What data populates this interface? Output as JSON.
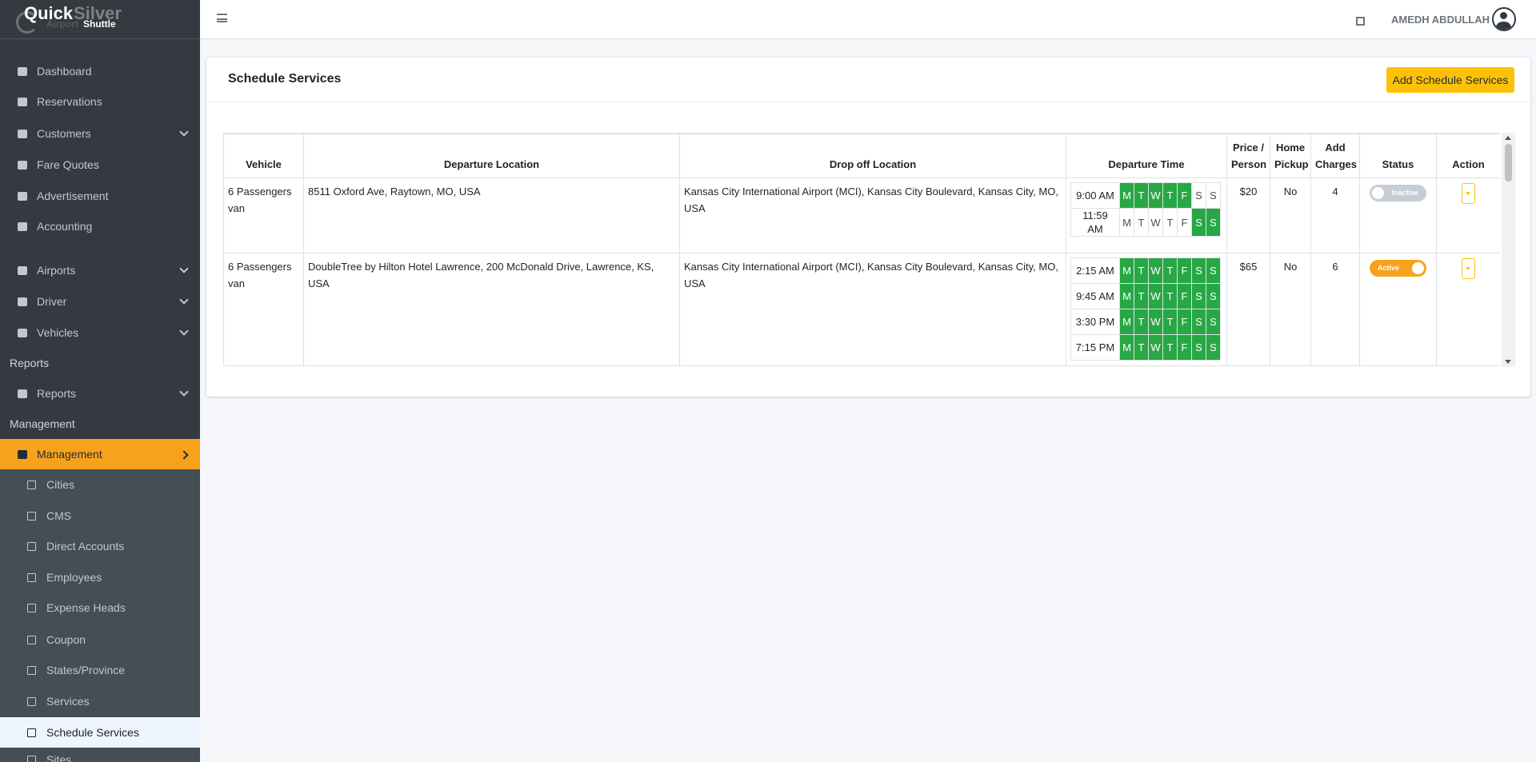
{
  "brand": {
    "word1": "Quick",
    "word2": "Silver",
    "word3": "Airport",
    "word4": "Shuttle"
  },
  "header": {
    "user_name": "AMEDH ABDULLAH"
  },
  "sidebar": {
    "items": [
      {
        "label": "Dashboard",
        "kind": "link"
      },
      {
        "label": "Reservations",
        "kind": "link"
      },
      {
        "label": "Customers",
        "kind": "link",
        "expandable": true
      },
      {
        "label": "Fare Quotes",
        "kind": "link"
      },
      {
        "label": "Advertisement",
        "kind": "link"
      },
      {
        "label": "Accounting",
        "kind": "link"
      },
      {
        "label": "Airports",
        "kind": "link",
        "expandable": true
      },
      {
        "label": "Driver",
        "kind": "link",
        "expandable": true
      },
      {
        "label": "Vehicles",
        "kind": "link",
        "expandable": true
      },
      {
        "label": "Reports",
        "kind": "heading"
      },
      {
        "label": "Reports",
        "kind": "link",
        "expandable": true
      },
      {
        "label": "Management",
        "kind": "heading"
      },
      {
        "label": "Management",
        "kind": "link",
        "expanded": true,
        "active": true
      },
      {
        "label": "Cities",
        "kind": "sublink"
      },
      {
        "label": "CMS",
        "kind": "sublink"
      },
      {
        "label": "Direct Accounts",
        "kind": "sublink"
      },
      {
        "label": "Employees",
        "kind": "sublink"
      },
      {
        "label": "Expense Heads",
        "kind": "sublink"
      },
      {
        "label": "Coupon",
        "kind": "sublink"
      },
      {
        "label": "States/Province",
        "kind": "sublink"
      },
      {
        "label": "Services",
        "kind": "sublink"
      },
      {
        "label": "Schedule Services",
        "kind": "sublink",
        "active": true
      },
      {
        "label": "Sites",
        "kind": "sublink"
      }
    ]
  },
  "card": {
    "title": "Schedule Services",
    "add_button": "Add Schedule Services"
  },
  "table": {
    "columns": [
      "Vehicle",
      "Departure Location",
      "Drop off Location",
      "Departure Time",
      "Price / Person",
      "Home Pickup",
      "Add Charges",
      "Status",
      "Action"
    ],
    "days": [
      "M",
      "T",
      "W",
      "T",
      "F",
      "S",
      "S"
    ],
    "rows": [
      {
        "vehicle": "6 Passengers van",
        "departure": "8511 Oxford Ave, Raytown, MO, USA",
        "dropoff": "Kansas City International Airport (MCI), Kansas City Boulevard, Kansas City, MO, USA",
        "schedule": [
          {
            "time": "9:00 AM",
            "active_days": [
              true,
              true,
              true,
              true,
              true,
              false,
              false
            ]
          },
          {
            "time": "11:59 AM",
            "active_days": [
              false,
              false,
              false,
              false,
              false,
              true,
              true
            ]
          }
        ],
        "price": "$20",
        "home_pickup": "No",
        "add_charges": "4",
        "status": "Inactive",
        "status_on": false
      },
      {
        "vehicle": "6 Passengers van",
        "departure": "DoubleTree by Hilton Hotel Lawrence, 200 McDonald Drive, Lawrence, KS, USA",
        "dropoff": "Kansas City International Airport (MCI), Kansas City Boulevard, Kansas City, MO, USA",
        "schedule": [
          {
            "time": "2:15 AM",
            "active_days": [
              true,
              true,
              true,
              true,
              true,
              true,
              true
            ]
          },
          {
            "time": "9:45 AM",
            "active_days": [
              true,
              true,
              true,
              true,
              true,
              true,
              true
            ]
          },
          {
            "time": "3:30 PM",
            "active_days": [
              true,
              true,
              true,
              true,
              true,
              true,
              true
            ]
          },
          {
            "time": "7:15 PM",
            "active_days": [
              true,
              true,
              true,
              true,
              true,
              true,
              true
            ]
          }
        ],
        "price": "$65",
        "home_pickup": "No",
        "add_charges": "6",
        "status": "Active",
        "status_on": true
      }
    ]
  }
}
